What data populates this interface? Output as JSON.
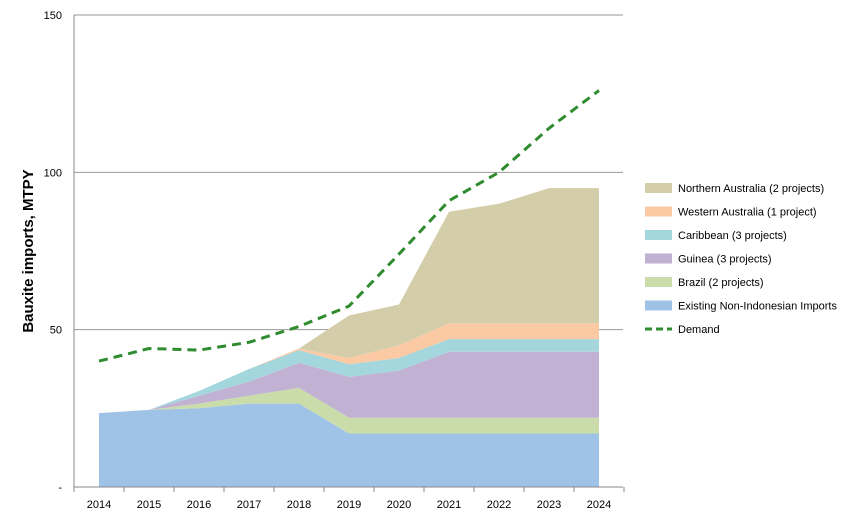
{
  "chart_data": {
    "type": "area",
    "title": "",
    "xlabel": "",
    "ylabel": "Bauxite imports, MTPY",
    "x": [
      "2014",
      "2015",
      "2016",
      "2017",
      "2018",
      "2019",
      "2020",
      "2021",
      "2022",
      "2023",
      "2024"
    ],
    "ylim": [
      0,
      150
    ],
    "y_ticks": [
      {
        "value": 0,
        "label": "-"
      },
      {
        "value": 50,
        "label": "50"
      },
      {
        "value": 100,
        "label": "100"
      },
      {
        "value": 150,
        "label": "150"
      }
    ],
    "grid": "horizontal",
    "legend_position": "right",
    "stacked": true,
    "series": [
      {
        "name": "Existing Non-Indonesian Imports",
        "color": "#9fc2e7",
        "values": [
          23.5,
          24.5,
          25,
          26.5,
          26.5,
          17,
          17,
          17,
          17,
          17,
          17
        ]
      },
      {
        "name": "Brazil (2 projects)",
        "color": "#c9dcaa",
        "values": [
          0,
          0,
          1.5,
          2.5,
          5,
          5,
          5,
          5,
          5,
          5,
          5
        ]
      },
      {
        "name": "Guinea (3 projects)",
        "color": "#c1b2d3",
        "values": [
          0,
          0,
          2.5,
          4.5,
          8,
          13,
          15,
          21,
          21,
          21,
          21
        ]
      },
      {
        "name": "Caribbean (3 projects)",
        "color": "#a4d6de",
        "values": [
          0,
          0,
          1.5,
          4,
          4,
          4,
          4,
          4,
          4,
          4,
          4
        ]
      },
      {
        "name": "Western Australia (1 project)",
        "color": "#fbc9a3",
        "values": [
          0,
          0,
          0,
          0,
          0.5,
          2,
          4,
          5,
          5,
          5,
          5
        ]
      },
      {
        "name": "Northern Australia (2 projects)",
        "color": "#d3cdaa",
        "values": [
          0,
          0,
          0,
          0,
          0,
          13.5,
          13,
          35.5,
          38,
          43,
          43
        ]
      }
    ],
    "line_series": [
      {
        "name": "Demand",
        "color": "#2e8b2e",
        "style": "dashed",
        "values": [
          40,
          44,
          43.5,
          46,
          51,
          57.5,
          74,
          91,
          100,
          114,
          126
        ]
      }
    ],
    "legend": [
      {
        "name": "Northern Australia (2 projects)",
        "color": "#d3cdaa",
        "kind": "area"
      },
      {
        "name": "Western Australia (1 project)",
        "color": "#fbc9a3",
        "kind": "area"
      },
      {
        "name": "Caribbean (3 projects)",
        "color": "#a4d6de",
        "kind": "area"
      },
      {
        "name": "Guinea (3 projects)",
        "color": "#c1b2d3",
        "kind": "area"
      },
      {
        "name": "Brazil (2 projects)",
        "color": "#c9dcaa",
        "kind": "area"
      },
      {
        "name": "Existing Non-Indonesian Imports",
        "color": "#9fc2e7",
        "kind": "area"
      },
      {
        "name": "Demand",
        "color": "#2e8b2e",
        "kind": "dashed-line"
      }
    ]
  }
}
